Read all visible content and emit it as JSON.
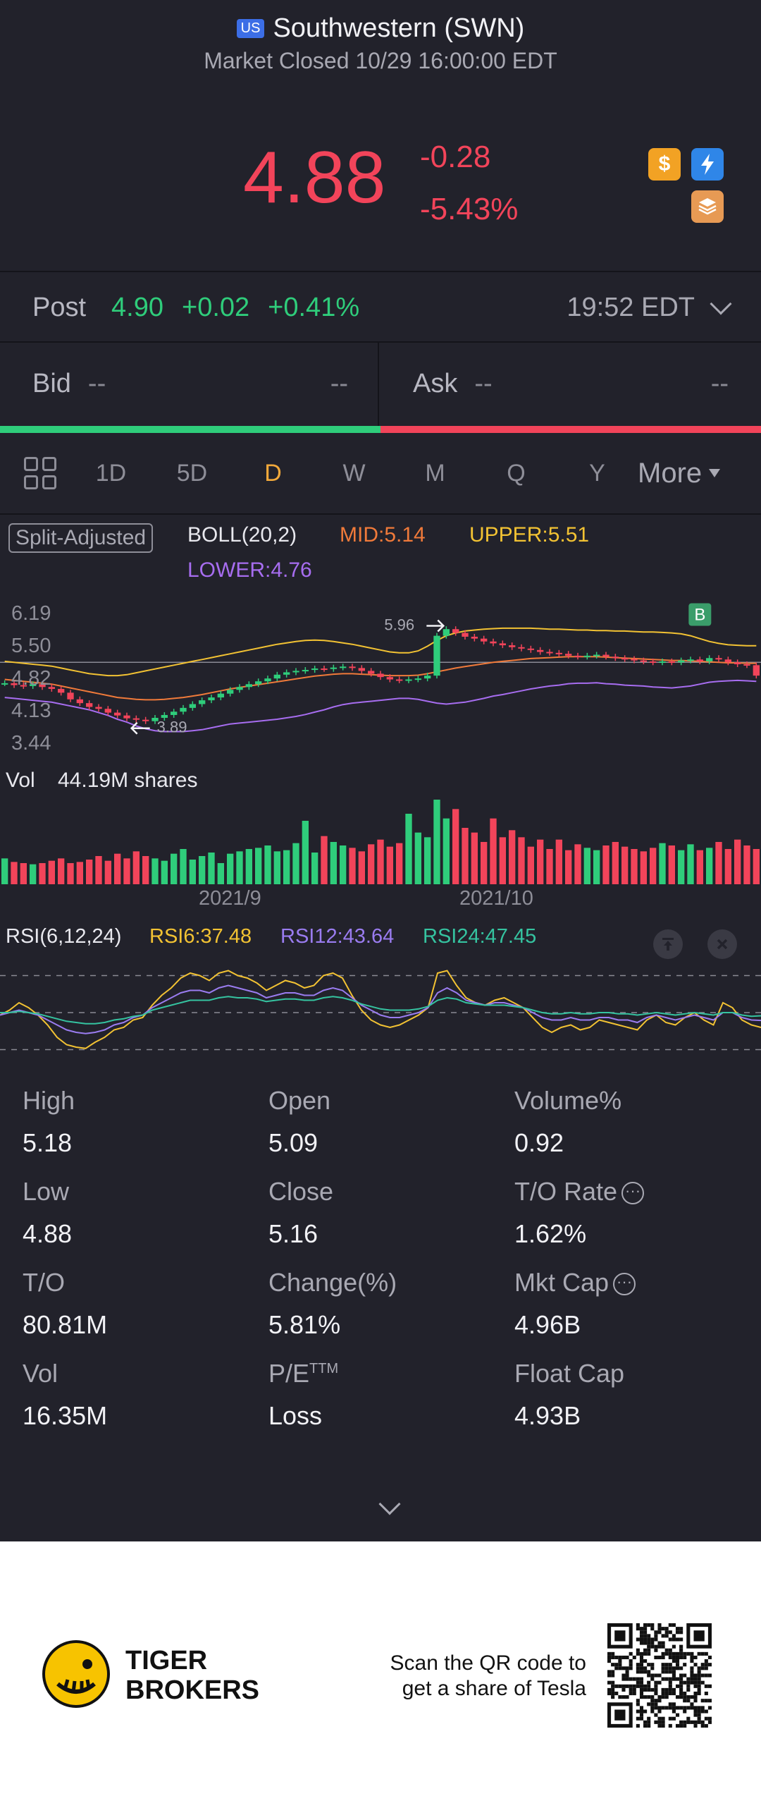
{
  "header": {
    "market_badge": "US",
    "stock_name": "Southwestern (SWN)",
    "market_status": "Market Closed 10/29 16:00:00 EDT",
    "price": "4.88",
    "change": "-0.28",
    "change_pct": "-5.43%",
    "colors": {
      "down": "#f2445a",
      "up": "#2fcd7b"
    }
  },
  "post_market": {
    "label": "Post",
    "price": "4.90",
    "change": "+0.02",
    "change_pct": "+0.41%",
    "time": "19:52 EDT"
  },
  "bid_ask": {
    "bid_label": "Bid",
    "bid_price": "--",
    "bid_size": "--",
    "ask_label": "Ask",
    "ask_price": "--",
    "ask_size": "--"
  },
  "tabs": [
    "1D",
    "5D",
    "D",
    "W",
    "M",
    "Q",
    "Y"
  ],
  "active_tab": "D",
  "more_label": "More",
  "indicators": {
    "split_label": "Split-Adjusted",
    "boll": "BOLL(20,2)",
    "mid": "MID:5.14",
    "upper": "UPPER:5.51",
    "lower": "LOWER:4.76"
  },
  "price_axis": [
    "6.19",
    "5.50",
    "4.82",
    "4.13",
    "3.44"
  ],
  "annotations": {
    "high": "5.96",
    "low": "3.89",
    "marker": "B"
  },
  "volume": {
    "label": "Vol",
    "value": "44.19M shares"
  },
  "x_axis": [
    "2021/9",
    "2021/10"
  ],
  "rsi": {
    "title": "RSI(6,12,24)",
    "rsi6": "RSI6:37.48",
    "rsi12": "RSI12:43.64",
    "rsi24": "RSI24:47.45"
  },
  "stats": [
    {
      "label": "High",
      "value": "5.18"
    },
    {
      "label": "Open",
      "value": "5.09"
    },
    {
      "label": "Volume%",
      "value": "0.92"
    },
    {
      "label": "Low",
      "value": "4.88"
    },
    {
      "label": "Close",
      "value": "5.16"
    },
    {
      "label": "T/O Rate",
      "value": "1.62%"
    },
    {
      "label": "T/O",
      "value": "80.81M"
    },
    {
      "label": "Change(%)",
      "value": "5.81%"
    },
    {
      "label": "Mkt Cap",
      "value": "4.96B"
    },
    {
      "label": "Vol",
      "value": "16.35M"
    },
    {
      "label": "P/E",
      "value": "Loss"
    },
    {
      "label": "Float Cap",
      "value": "4.93B"
    }
  ],
  "pe_superscript": "TTM",
  "footer": {
    "brand_line1": "TIGER",
    "brand_line2": "BROKERS",
    "scan_line1": "Scan the QR code to",
    "scan_line2": "get a share of Tesla"
  },
  "chart_data": [
    {
      "type": "candlestick",
      "title": "",
      "ylim": [
        3.44,
        6.19
      ],
      "yticks": [
        6.19,
        5.5,
        4.82,
        4.13,
        3.44
      ],
      "x_labels": [
        "2021/9",
        "2021/10"
      ],
      "close": [
        4.72,
        4.68,
        4.66,
        4.7,
        4.64,
        4.6,
        4.52,
        4.38,
        4.3,
        4.22,
        4.18,
        4.1,
        4.04,
        3.98,
        3.95,
        3.92,
        3.99,
        4.05,
        4.12,
        4.2,
        4.28,
        4.36,
        4.42,
        4.5,
        4.58,
        4.64,
        4.7,
        4.76,
        4.82,
        4.9,
        4.95,
        4.98,
        5.0,
        5.03,
        5.02,
        5.05,
        5.07,
        5.04,
        4.98,
        4.92,
        4.85,
        4.8,
        4.78,
        4.8,
        4.82,
        4.88,
        5.72,
        5.86,
        5.78,
        5.7,
        5.66,
        5.6,
        5.56,
        5.52,
        5.48,
        5.45,
        5.42,
        5.38,
        5.36,
        5.34,
        5.3,
        5.28,
        5.3,
        5.32,
        5.28,
        5.25,
        5.23,
        5.2,
        5.18,
        5.16,
        5.18,
        5.16,
        5.2,
        5.22,
        5.18,
        5.25,
        5.22,
        5.16,
        5.12,
        5.1,
        4.88
      ],
      "series": [
        {
          "name": "MID:5.14",
          "color": "#f07a3a",
          "values": [
            4.8,
            4.78,
            4.76,
            4.74,
            4.72,
            4.7,
            4.66,
            4.62,
            4.58,
            4.54,
            4.5,
            4.46,
            4.42,
            4.4,
            4.38,
            4.37,
            4.37,
            4.38,
            4.4,
            4.42,
            4.45,
            4.48,
            4.52,
            4.56,
            4.6,
            4.63,
            4.66,
            4.69,
            4.72,
            4.75,
            4.78,
            4.81,
            4.84,
            4.87,
            4.89,
            4.91,
            4.92,
            4.92,
            4.91,
            4.9,
            4.89,
            4.88,
            4.88,
            4.88,
            4.89,
            4.92,
            4.96,
            5.0,
            5.04,
            5.07,
            5.1,
            5.13,
            5.16,
            5.18,
            5.2,
            5.22,
            5.24,
            5.25,
            5.26,
            5.27,
            5.28,
            5.28,
            5.28,
            5.28,
            5.27,
            5.26,
            5.25,
            5.24,
            5.23,
            5.22,
            5.21,
            5.2,
            5.2,
            5.19,
            5.18,
            5.17,
            5.16,
            5.15,
            5.15,
            5.14,
            5.14
          ]
        },
        {
          "name": "UPPER:5.51",
          "color": "#f2c233",
          "values": [
            5.18,
            5.16,
            5.14,
            5.12,
            5.1,
            5.08,
            5.04,
            5.0,
            4.96,
            4.92,
            4.9,
            4.88,
            4.88,
            4.9,
            4.94,
            4.98,
            5.02,
            5.06,
            5.1,
            5.14,
            5.18,
            5.22,
            5.26,
            5.3,
            5.34,
            5.38,
            5.42,
            5.46,
            5.5,
            5.54,
            5.57,
            5.6,
            5.62,
            5.63,
            5.62,
            5.6,
            5.57,
            5.54,
            5.5,
            5.46,
            5.42,
            5.38,
            5.36,
            5.36,
            5.4,
            5.5,
            5.62,
            5.72,
            5.78,
            5.82,
            5.84,
            5.86,
            5.87,
            5.88,
            5.88,
            5.88,
            5.88,
            5.87,
            5.86,
            5.86,
            5.85,
            5.84,
            5.84,
            5.83,
            5.83,
            5.82,
            5.82,
            5.81,
            5.8,
            5.8,
            5.79,
            5.78,
            5.76,
            5.72,
            5.66,
            5.6,
            5.56,
            5.53,
            5.52,
            5.51,
            5.51
          ]
        },
        {
          "name": "LOWER:4.76",
          "color": "#a76df0",
          "values": [
            4.42,
            4.4,
            4.38,
            4.36,
            4.34,
            4.32,
            4.28,
            4.24,
            4.2,
            4.16,
            4.1,
            4.04,
            3.96,
            3.9,
            3.82,
            3.76,
            3.72,
            3.7,
            3.7,
            3.7,
            3.72,
            3.74,
            3.78,
            3.82,
            3.86,
            3.88,
            3.9,
            3.92,
            3.94,
            3.96,
            3.99,
            4.02,
            4.06,
            4.11,
            4.16,
            4.22,
            4.27,
            4.3,
            4.32,
            4.34,
            4.36,
            4.38,
            4.4,
            4.4,
            4.38,
            4.34,
            4.3,
            4.28,
            4.3,
            4.32,
            4.36,
            4.4,
            4.45,
            4.48,
            4.52,
            4.56,
            4.6,
            4.63,
            4.66,
            4.68,
            4.71,
            4.72,
            4.72,
            4.73,
            4.71,
            4.7,
            4.68,
            4.67,
            4.66,
            4.64,
            4.63,
            4.62,
            4.64,
            4.66,
            4.7,
            4.74,
            4.76,
            4.77,
            4.78,
            4.77,
            4.76
          ]
        }
      ]
    },
    {
      "type": "bar",
      "title": "Vol",
      "values": [
        22,
        19,
        18,
        17,
        18,
        20,
        22,
        18,
        19,
        21,
        24,
        20,
        26,
        22,
        28,
        24,
        22,
        20,
        26,
        30,
        21,
        24,
        27,
        18,
        26,
        28,
        30,
        31,
        33,
        28,
        29,
        35,
        54,
        27,
        41,
        36,
        33,
        31,
        28,
        34,
        38,
        32,
        35,
        60,
        44,
        40,
        72,
        56,
        64,
        48,
        44,
        36,
        56,
        40,
        46,
        40,
        32,
        38,
        30,
        38,
        29,
        34,
        31,
        29,
        33,
        36,
        32,
        30,
        28,
        31,
        35,
        33,
        29,
        34,
        29,
        31,
        36,
        30,
        38,
        33,
        30
      ],
      "colors_by_close": "green=up, red=down"
    },
    {
      "type": "line",
      "title": "RSI(6,12,24)",
      "ylim": [
        0,
        100
      ],
      "series": [
        {
          "name": "RSI6:37.48",
          "color": "#f2c233",
          "values": [
            48,
            52,
            58,
            54,
            48,
            40,
            30,
            24,
            22,
            21,
            26,
            30,
            36,
            38,
            44,
            46,
            56,
            64,
            70,
            78,
            82,
            80,
            76,
            82,
            84,
            80,
            78,
            74,
            68,
            72,
            76,
            74,
            70,
            72,
            80,
            82,
            78,
            64,
            52,
            44,
            40,
            38,
            40,
            44,
            48,
            54,
            82,
            84,
            72,
            62,
            58,
            56,
            60,
            62,
            58,
            54,
            46,
            38,
            34,
            38,
            40,
            36,
            38,
            44,
            42,
            40,
            38,
            36,
            44,
            48,
            42,
            40,
            46,
            50,
            44,
            40,
            58,
            54,
            44,
            40,
            38
          ]
        },
        {
          "name": "RSI12:43.64",
          "color": "#9a7cf0",
          "values": [
            48,
            50,
            52,
            50,
            48,
            44,
            40,
            36,
            34,
            33,
            34,
            36,
            40,
            42,
            46,
            48,
            54,
            58,
            62,
            66,
            68,
            68,
            66,
            70,
            72,
            70,
            68,
            66,
            62,
            64,
            66,
            66,
            64,
            64,
            68,
            70,
            68,
            62,
            56,
            52,
            48,
            46,
            46,
            48,
            50,
            54,
            66,
            70,
            66,
            60,
            58,
            56,
            58,
            58,
            56,
            54,
            50,
            46,
            44,
            44,
            46,
            44,
            44,
            46,
            46,
            44,
            44,
            42,
            46,
            48,
            46,
            44,
            46,
            48,
            46,
            44,
            50,
            50,
            46,
            44,
            43.64
          ]
        },
        {
          "name": "RSI24:47.45",
          "color": "#35c3a0",
          "values": [
            50,
            50,
            51,
            50,
            49,
            47,
            45,
            43,
            42,
            41,
            41,
            42,
            44,
            45,
            47,
            48,
            52,
            54,
            56,
            58,
            60,
            60,
            60,
            62,
            63,
            62,
            62,
            61,
            59,
            60,
            61,
            61,
            60,
            60,
            62,
            63,
            62,
            60,
            57,
            55,
            53,
            52,
            52,
            52,
            53,
            55,
            60,
            62,
            61,
            58,
            57,
            56,
            56,
            56,
            55,
            54,
            52,
            50,
            49,
            49,
            50,
            49,
            49,
            50,
            50,
            49,
            49,
            48,
            49,
            50,
            49,
            48,
            49,
            50,
            49,
            48,
            50,
            50,
            48,
            47,
            47.45
          ]
        }
      ]
    }
  ]
}
